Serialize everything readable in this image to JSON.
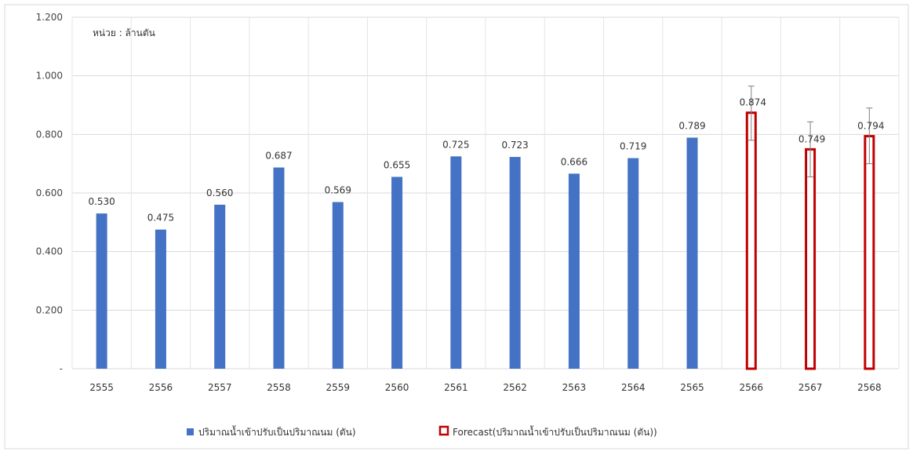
{
  "chart_data": {
    "type": "bar",
    "unit_label": "หน่วย : ล้านตัน",
    "categories": [
      "2555",
      "2556",
      "2557",
      "2558",
      "2559",
      "2560",
      "2561",
      "2562",
      "2563",
      "2564",
      "2565",
      "2566",
      "2567",
      "2568"
    ],
    "y_ticks": [
      "-",
      "0.200",
      "0.400",
      "0.600",
      "0.800",
      "1.000",
      "1.200"
    ],
    "ylim": [
      0,
      1.2
    ],
    "grid": true,
    "legend_position": "bottom",
    "series": [
      {
        "name": "ปริมาณน้ำเข้าปรับเป็นปริมาณนม (ตัน)",
        "color": "#4472C4",
        "style": "solid",
        "values": [
          0.53,
          0.475,
          0.56,
          0.687,
          0.569,
          0.655,
          0.725,
          0.723,
          0.666,
          0.719,
          0.789,
          null,
          null,
          null
        ],
        "labels": [
          "0.530",
          "0.475",
          "0.560",
          "0.687",
          "0.569",
          "0.655",
          "0.725",
          "0.723",
          "0.666",
          "0.719",
          "0.789",
          "",
          "",
          ""
        ]
      },
      {
        "name": "Forecast(ปริมาณน้ำเข้าปรับเป็นปริมาณนม (ตัน))",
        "color": "#C00000",
        "style": "outline",
        "values": [
          null,
          null,
          null,
          null,
          null,
          null,
          null,
          null,
          null,
          null,
          null,
          0.874,
          0.749,
          0.794
        ],
        "labels": [
          "",
          "",
          "",
          "",
          "",
          "",
          "",
          "",
          "",
          "",
          "",
          "0.874",
          "0.749",
          "0.794"
        ],
        "error_bars": [
          null,
          null,
          null,
          null,
          null,
          null,
          null,
          null,
          null,
          null,
          null,
          [
            0.78,
            0.965
          ],
          [
            0.655,
            0.843
          ],
          [
            0.7,
            0.89
          ]
        ]
      }
    ]
  }
}
